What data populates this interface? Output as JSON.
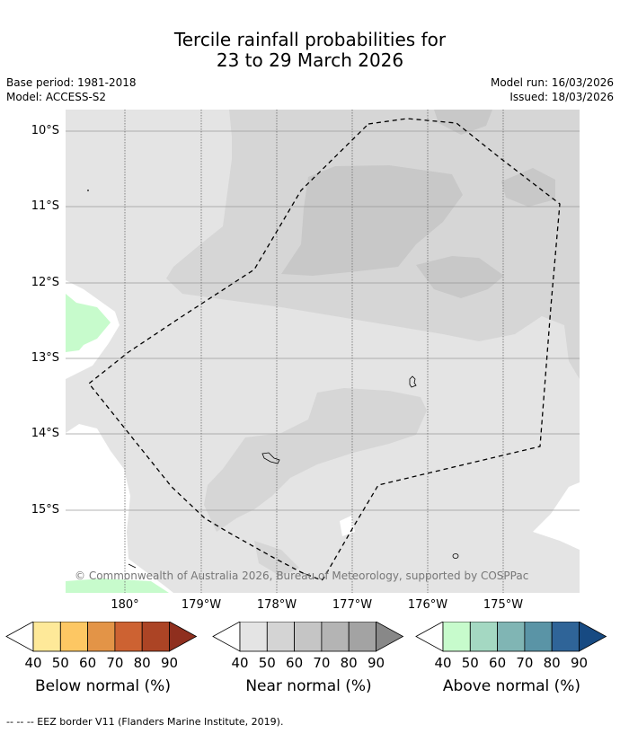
{
  "title": {
    "line1": "Tercile rainfall probabilities for",
    "line2": "23 to 29 March 2026"
  },
  "meta": {
    "base_period": "Base period: 1981-2018",
    "model": "Model: ACCESS-S2",
    "model_run": "Model run: 16/03/2026",
    "issued": "Issued: 18/03/2026"
  },
  "map": {
    "lat_labels": [
      "10°S",
      "11°S",
      "12°S",
      "13°S",
      "14°S",
      "15°S"
    ],
    "lon_labels": [
      "180°",
      "179°W",
      "178°W",
      "177°W",
      "176°W",
      "175°W"
    ],
    "copyright": "© Commonwealth of Australia 2026, Bureau of Meteorology, supported by COSPPac"
  },
  "legend": {
    "ticks": [
      "40",
      "50",
      "60",
      "70",
      "80",
      "90"
    ],
    "below": {
      "label": "Below normal (%)",
      "colors": [
        "#ffffff",
        "#fee999",
        "#fdc763",
        "#e39447",
        "#cd6232",
        "#ac4425",
        "#8f2f1e"
      ]
    },
    "near": {
      "label": "Near normal (%)",
      "colors": [
        "#ffffff",
        "#e4e4e4",
        "#d4d4d4",
        "#c5c5c5",
        "#b4b4b4",
        "#a3a3a3",
        "#888888"
      ]
    },
    "above": {
      "label": "Above normal (%)",
      "colors": [
        "#ffffff",
        "#c7fbcc",
        "#a4d8c2",
        "#80b5b4",
        "#5a94a6",
        "#2f6498",
        "#174a82"
      ]
    }
  },
  "footnote": "--  --  -- EEZ border V11 (Flanders Marine Institute, 2019)."
}
